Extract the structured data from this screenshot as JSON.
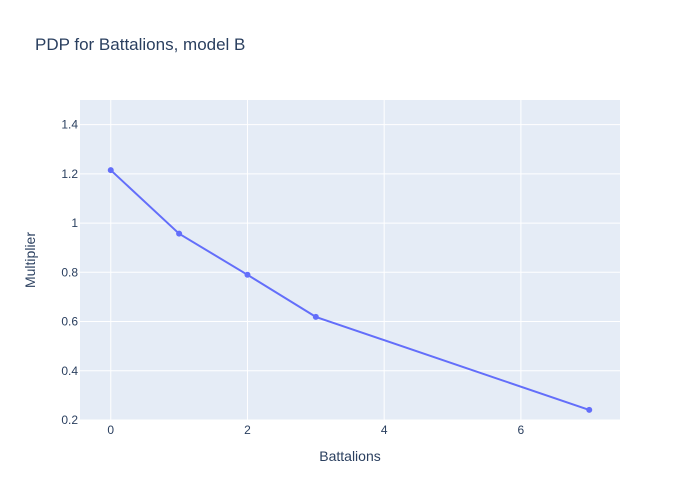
{
  "chart_data": {
    "type": "line",
    "title": "PDP for Battalions, model B",
    "xlabel": "Battalions",
    "ylabel": "Multiplier",
    "x": [
      0,
      1,
      2,
      3,
      7
    ],
    "series": [
      {
        "values": [
          1.215,
          0.957,
          0.79,
          0.619,
          0.241
        ]
      }
    ],
    "xlim": [
      -0.45,
      7.45
    ],
    "ylim": [
      0.2,
      1.5
    ],
    "xticks": [
      0,
      2,
      4,
      6
    ],
    "xtick_labels": [
      "0",
      "2",
      "4",
      "6"
    ],
    "yticks": [
      0.2,
      0.4,
      0.6,
      0.8,
      1,
      1.2,
      1.4
    ],
    "ytick_labels": [
      "0.2",
      "0.4",
      "0.6",
      "0.8",
      "1",
      "1.2",
      "1.4"
    ],
    "grid": true,
    "legend": "none",
    "colors": {
      "line": "#636efa",
      "plot_background": "#e5ecf6",
      "grid": "#ffffff",
      "text": "#2a3f5f"
    }
  }
}
